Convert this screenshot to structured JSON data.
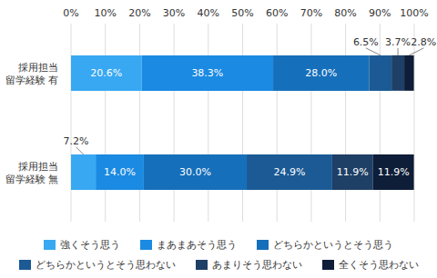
{
  "chart_data": {
    "type": "bar",
    "orientation": "horizontal",
    "stacked": true,
    "data_labels": true,
    "grid": true,
    "legend": "bottom",
    "categories": [
      "採用担当\n留学経験 有",
      "採用担当\n留学経験 無"
    ],
    "xlim": [
      0,
      100
    ],
    "xticks": [
      {
        "value": 0,
        "label": "0%"
      },
      {
        "value": 10,
        "label": "10%"
      },
      {
        "value": 20,
        "label": "20%"
      },
      {
        "value": 30,
        "label": "30%"
      },
      {
        "value": 40,
        "label": "40%"
      },
      {
        "value": 50,
        "label": "50%"
      },
      {
        "value": 60,
        "label": "60%"
      },
      {
        "value": 70,
        "label": "70%"
      },
      {
        "value": 80,
        "label": "80%"
      },
      {
        "value": 90,
        "label": "90%"
      },
      {
        "value": 100,
        "label": "100%"
      }
    ],
    "series": [
      {
        "name": "強くそう思う",
        "color": "#38a8f2",
        "values": [
          20.6,
          7.2
        ],
        "value_labels": [
          "20.6%",
          "7.2%"
        ]
      },
      {
        "name": "まあまあそう思う",
        "color": "#1a8ae2",
        "values": [
          38.3,
          14.0
        ],
        "value_labels": [
          "38.3%",
          "14.0%"
        ]
      },
      {
        "name": "どちらかというとそう思う",
        "color": "#166fba",
        "values": [
          28.0,
          30.0
        ],
        "value_labels": [
          "28.0%",
          "30.0%"
        ]
      },
      {
        "name": "どちらかというとそう思わない",
        "color": "#1b5a94",
        "values": [
          6.5,
          24.9
        ],
        "value_labels": [
          "6.5%",
          "24.9%"
        ]
      },
      {
        "name": "あまりそう思わない",
        "color": "#1e3f66",
        "values": [
          3.7,
          11.9
        ],
        "value_labels": [
          "3.7%",
          "11.9%"
        ]
      },
      {
        "name": "全くそう思わない",
        "color": "#0e1d38",
        "values": [
          2.8,
          11.9
        ],
        "value_labels": [
          "2.8%",
          "11.9%"
        ]
      }
    ]
  }
}
